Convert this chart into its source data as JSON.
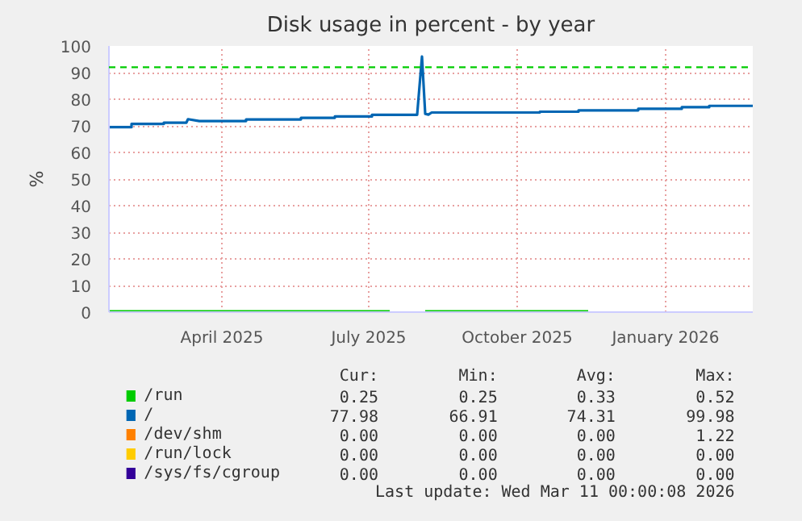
{
  "chart_data": {
    "type": "line",
    "title": "Disk usage in percent - by year",
    "ylabel": "%",
    "xlim": [
      "2025-01-21",
      "2026-02-24"
    ],
    "xticks": [
      {
        "value": "2025-04-01",
        "label": "April 2025"
      },
      {
        "value": "2025-07-01",
        "label": "July 2025"
      },
      {
        "value": "2025-10-01",
        "label": "October 2025"
      },
      {
        "value": "2026-01-01",
        "label": "January 2026"
      }
    ],
    "ylim": [
      0,
      100
    ],
    "yticks": [
      0,
      10,
      20,
      30,
      40,
      50,
      60,
      70,
      80,
      90,
      100
    ],
    "grid": true,
    "legend": "bottom",
    "ref_lines": [
      {
        "axis": "y",
        "value": 92,
        "color": "#00cc00",
        "line_style": "dashed"
      }
    ],
    "series": [
      {
        "name": "/run",
        "color": "#00cc00",
        "x": [
          "2025-01-21",
          "2025-07-14",
          "2025-07-15",
          "2025-08-05",
          "2025-11-14"
        ],
        "values": [
          0.3,
          0.3,
          null,
          0.3,
          0.3
        ]
      },
      {
        "name": "/",
        "color": "#0066b3",
        "x": [
          "2025-01-21",
          "2025-02-04",
          "2025-02-04",
          "2025-02-24",
          "2025-02-24",
          "2025-03-10",
          "2025-03-11",
          "2025-03-18",
          "2025-03-18",
          "2025-04-16",
          "2025-04-16",
          "2025-05-20",
          "2025-05-20",
          "2025-06-10",
          "2025-06-10",
          "2025-07-03",
          "2025-07-03",
          "2025-07-31",
          "2025-08-03",
          "2025-08-05",
          "2025-08-07",
          "2025-08-09",
          "2025-10-15",
          "2025-10-15",
          "2025-11-08",
          "2025-11-08",
          "2025-12-15",
          "2025-12-15",
          "2026-01-11",
          "2026-01-11",
          "2026-01-28",
          "2026-01-28",
          "2026-02-24"
        ],
        "values": [
          69.5,
          69.5,
          70.7,
          70.7,
          71.2,
          71.2,
          72.5,
          71.8,
          71.8,
          71.8,
          72.4,
          72.4,
          73,
          73,
          73.5,
          73.5,
          74.1,
          74.1,
          96,
          74.5,
          74.2,
          75,
          75,
          75.3,
          75.3,
          75.8,
          75.8,
          76.4,
          76.4,
          77,
          77,
          77.5,
          77.5
        ]
      },
      {
        "name": "/dev/shm",
        "color": "#ff8000"
      },
      {
        "name": "/run/lock",
        "color": "#ffcc00"
      },
      {
        "name": "/sys/fs/cgroup",
        "color": "#330099"
      }
    ],
    "annotations": [
      "Cur:",
      "Min:",
      "Avg:",
      "Max:",
      "0.25",
      "0.25",
      "0.33",
      "0.52",
      "77.98",
      "66.91",
      "74.31",
      "99.98",
      "0.00",
      "0.00",
      "0.00",
      "1.22",
      "0.00",
      "0.00",
      "0.00",
      "0.00",
      "0.00",
      "0.00",
      "0.00",
      "0.00",
      "Last update: Wed Mar 11 00:00:08 2026"
    ]
  }
}
